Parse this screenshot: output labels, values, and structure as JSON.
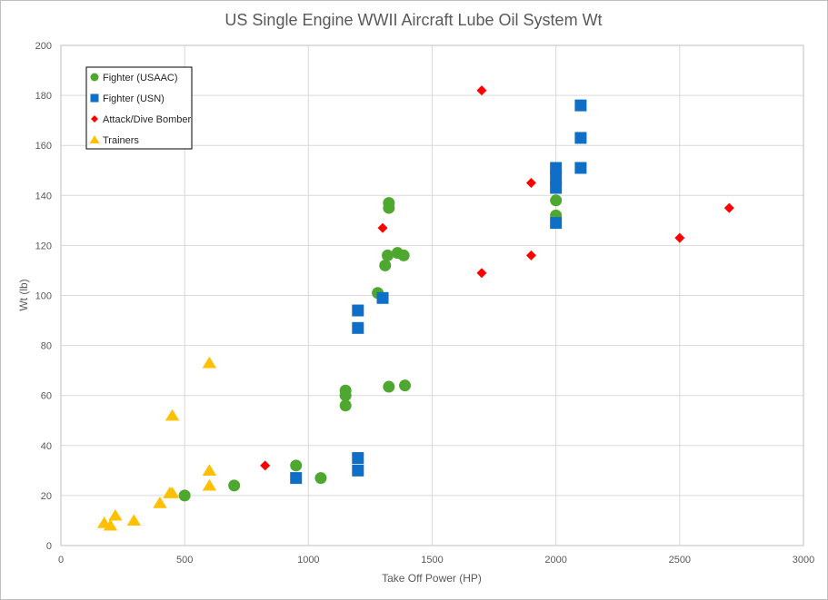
{
  "chart_data": {
    "type": "scatter",
    "title": "US Single Engine WWII Aircraft Lube Oil System  Wt",
    "xlabel": "Take Off Power (HP)",
    "ylabel": "Wt (lb)",
    "xlim": [
      0,
      3000
    ],
    "ylim": [
      0,
      200
    ],
    "xticks": [
      0,
      500,
      1000,
      1500,
      2000,
      2500,
      3000
    ],
    "yticks": [
      0,
      20,
      40,
      60,
      80,
      100,
      120,
      140,
      160,
      180,
      200
    ],
    "grid": true,
    "legend_position": "top-left",
    "series": [
      {
        "name": "Fighter (USAAC)",
        "marker": "circle",
        "color": "#4ea72e",
        "points": [
          [
            500,
            20
          ],
          [
            700,
            24
          ],
          [
            950,
            32
          ],
          [
            1050,
            27
          ],
          [
            1150,
            56
          ],
          [
            1150,
            60
          ],
          [
            1150,
            62
          ],
          [
            1280,
            101
          ],
          [
            1310,
            112
          ],
          [
            1320,
            116
          ],
          [
            1325,
            63.5
          ],
          [
            1325,
            135
          ],
          [
            1325,
            137
          ],
          [
            1360,
            117
          ],
          [
            1385,
            116
          ],
          [
            1390,
            64
          ],
          [
            2000,
            138
          ],
          [
            2000,
            132
          ]
        ]
      },
      {
        "name": "Fighter (USN)",
        "marker": "square",
        "color": "#0f6fc6",
        "points": [
          [
            950,
            27
          ],
          [
            1200,
            30
          ],
          [
            1200,
            35
          ],
          [
            1200,
            87
          ],
          [
            1200,
            94
          ],
          [
            1300,
            99
          ],
          [
            2000,
            129
          ],
          [
            2000,
            143
          ],
          [
            2000,
            147
          ],
          [
            2000,
            151
          ],
          [
            2100,
            151
          ],
          [
            2100,
            163
          ],
          [
            2100,
            176
          ]
        ]
      },
      {
        "name": "Attack/Dive Bomber",
        "marker": "diamond",
        "color": "#ff0000",
        "points": [
          [
            825,
            32
          ],
          [
            1300,
            127
          ],
          [
            1700,
            109
          ],
          [
            1700,
            182
          ],
          [
            1900,
            116
          ],
          [
            1900,
            145
          ],
          [
            2500,
            123
          ],
          [
            2700,
            135
          ]
        ]
      },
      {
        "name": "Trainers",
        "marker": "triangle",
        "color": "#ffc000",
        "points": [
          [
            175,
            9
          ],
          [
            200,
            8
          ],
          [
            220,
            12
          ],
          [
            295,
            10
          ],
          [
            400,
            17
          ],
          [
            440,
            21
          ],
          [
            450,
            21
          ],
          [
            450,
            52
          ],
          [
            600,
            24
          ],
          [
            600,
            30
          ],
          [
            600,
            73
          ]
        ]
      }
    ]
  }
}
